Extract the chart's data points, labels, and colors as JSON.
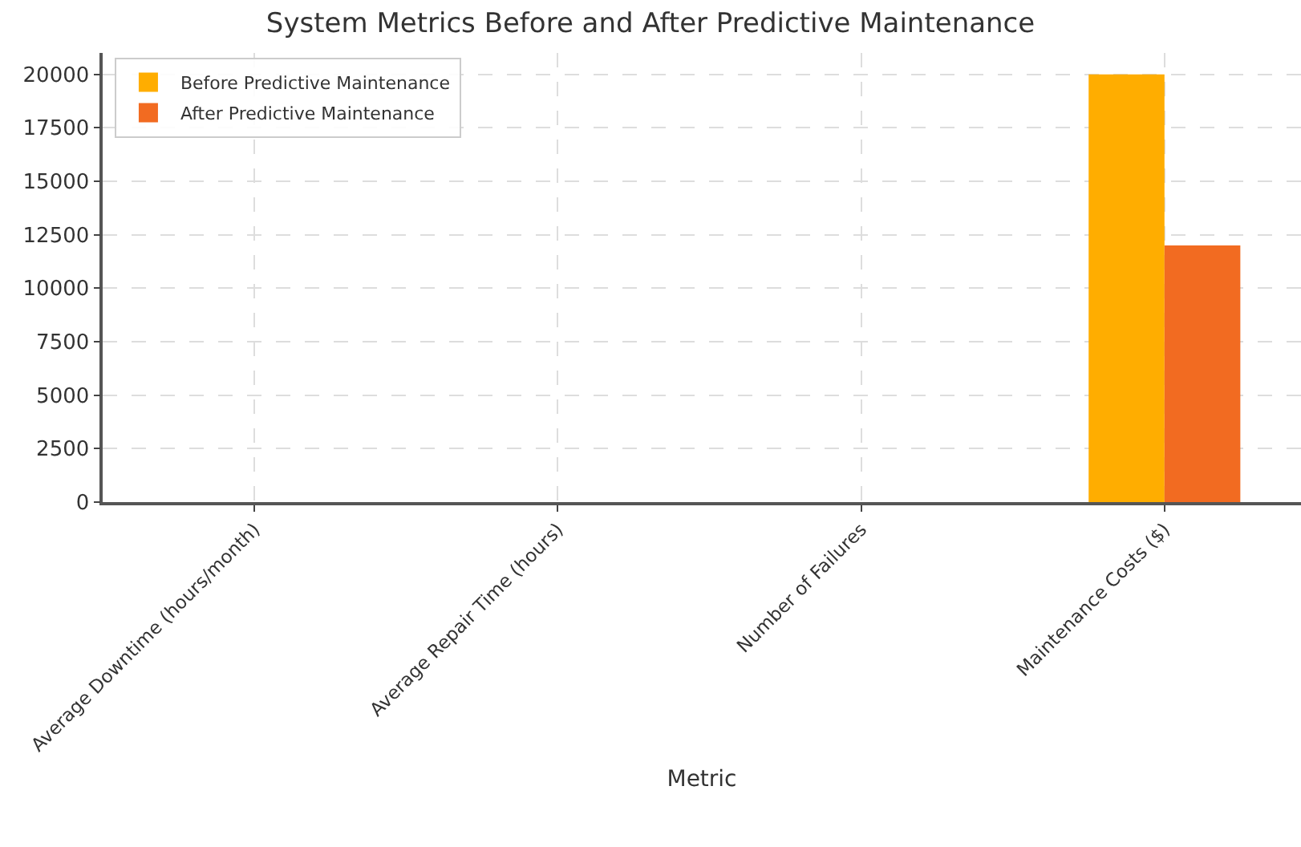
{
  "chart_data": {
    "type": "bar",
    "title": "System Metrics Before and After Predictive Maintenance",
    "xlabel": "Metric",
    "categories": [
      "Average Downtime (hours/month)",
      "Average Repair Time (hours)",
      "Number of Failures",
      "Maintenance Costs ($)"
    ],
    "series": [
      {
        "name": "Before Predictive Maintenance",
        "color": "#ffad00",
        "values": [
          0,
          0,
          0,
          20000
        ]
      },
      {
        "name": "After Predictive Maintenance",
        "color": "#f26b21",
        "values": [
          0,
          0,
          0,
          12000
        ]
      }
    ],
    "ylim": [
      0,
      21000
    ],
    "yticks": [
      0,
      2500,
      5000,
      7500,
      10000,
      12500,
      15000,
      17500,
      20000
    ],
    "grid": true,
    "legend": "top left"
  }
}
